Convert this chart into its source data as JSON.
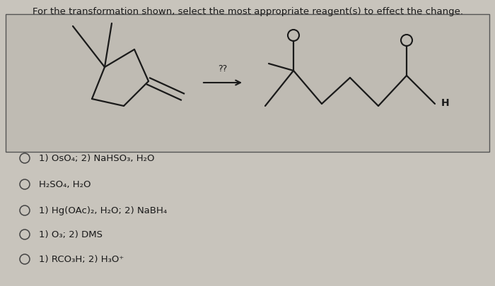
{
  "title": "For the transformation shown, select the most appropriate reagent(s) to effect the change.",
  "bg_color": "#c8c4bc",
  "box_bg": "#bfbbb3",
  "title_fontsize": 9.5,
  "options": [
    "1) OsO₄; 2) NaHSO₃, H₂O",
    "H₂SO₄, H₂O",
    "1) Hg(OAc)₂, H₂O; 2) NaBH₄",
    "1) O₃; 2) DMS",
    "1) RCO₃H; 2) H₃O⁺"
  ],
  "options_fontsize": 9.5,
  "question_mark_text": "??",
  "text_color": "#1a1a1a",
  "circle_color": "#444444",
  "line_color": "#1a1a1a",
  "box_edge_color": "#555555"
}
